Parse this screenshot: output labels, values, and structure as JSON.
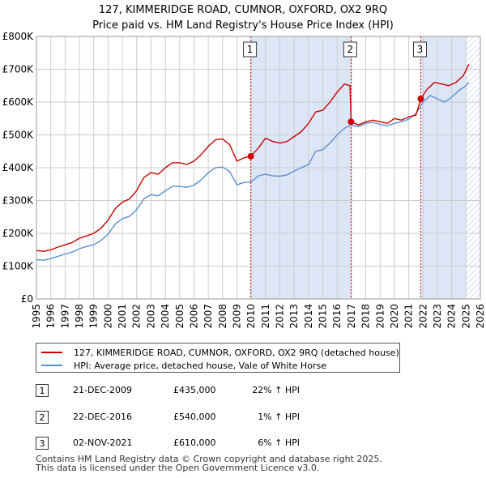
{
  "title": "127, KIMMERIDGE ROAD, CUMNOR, OXFORD, OX2 9RQ",
  "subtitle": "Price paid vs. HM Land Registry's House Price Index (HPI)",
  "colors": {
    "property": "#cc0000",
    "hpi": "#5b8fd0",
    "shade": "#dde6f6",
    "grid": "#cccccc",
    "marker_line": "#cc0000",
    "hatch": "#c8d4ea"
  },
  "chart_data": {
    "type": "line",
    "title": "127, KIMMERIDGE ROAD, CUMNOR, OXFORD, OX2 9RQ",
    "subtitle": "Price paid vs. HM Land Registry's House Price Index (HPI)",
    "xlabel": "",
    "ylabel": "",
    "xlim": [
      1995,
      2026
    ],
    "ylim": [
      0,
      800000
    ],
    "grid": true,
    "x_ticks": [
      1995,
      1996,
      1997,
      1998,
      1999,
      2000,
      2001,
      2002,
      2003,
      2004,
      2005,
      2006,
      2007,
      2008,
      2009,
      2010,
      2011,
      2012,
      2013,
      2014,
      2015,
      2016,
      2017,
      2018,
      2019,
      2020,
      2021,
      2022,
      2023,
      2024,
      2025,
      2026
    ],
    "x_tick_labels": [
      "1995",
      "1996",
      "1997",
      "1998",
      "1999",
      "2000",
      "2001",
      "2002",
      "2003",
      "2004",
      "2005",
      "2006",
      "2007",
      "2008",
      "2009",
      "2010",
      "2011",
      "2012",
      "2013",
      "2014",
      "2015",
      "2016",
      "2017",
      "2018",
      "2019",
      "2020",
      "2021",
      "2022",
      "2023",
      "2024",
      "2025",
      "2026"
    ],
    "y_ticks": [
      0,
      100000,
      200000,
      300000,
      400000,
      500000,
      600000,
      700000,
      800000
    ],
    "y_tick_labels": [
      "£0",
      "£100K",
      "£200K",
      "£300K",
      "£400K",
      "£500K",
      "£600K",
      "£700K",
      "£800K"
    ],
    "shaded_periods": [
      [
        2009.97,
        2016.97
      ],
      [
        2021.84,
        2025.0
      ]
    ],
    "hatched_from": 2025.0,
    "series": [
      {
        "name": "127, KIMMERIDGE ROAD, CUMNOR, OXFORD, OX2 9RQ (detached house)",
        "x": [
          1995.0,
          1995.5,
          1996.0,
          1996.5,
          1997.0,
          1997.5,
          1998.0,
          1998.5,
          1999.0,
          1999.5,
          2000.0,
          2000.5,
          2001.0,
          2001.5,
          2002.0,
          2002.5,
          2003.0,
          2003.5,
          2004.0,
          2004.5,
          2005.0,
          2005.5,
          2006.0,
          2006.5,
          2007.0,
          2007.5,
          2008.0,
          2008.5,
          2009.0,
          2009.5,
          2009.97,
          2010.5,
          2011.0,
          2011.5,
          2012.0,
          2012.5,
          2013.0,
          2013.5,
          2014.0,
          2014.5,
          2015.0,
          2015.5,
          2016.0,
          2016.5,
          2016.9,
          2016.97,
          2017.5,
          2018.0,
          2018.5,
          2019.0,
          2019.5,
          2020.0,
          2020.5,
          2021.0,
          2021.5,
          2021.84,
          2022.3,
          2022.8,
          2023.3,
          2023.8,
          2024.3,
          2024.8,
          2025.2
        ],
        "y": [
          148000,
          145000,
          150000,
          158000,
          165000,
          172000,
          185000,
          192000,
          200000,
          215000,
          240000,
          275000,
          295000,
          305000,
          330000,
          370000,
          385000,
          380000,
          400000,
          415000,
          415000,
          410000,
          420000,
          440000,
          465000,
          485000,
          488000,
          470000,
          420000,
          430000,
          435000,
          460000,
          490000,
          480000,
          475000,
          480000,
          495000,
          510000,
          535000,
          570000,
          575000,
          600000,
          630000,
          655000,
          650000,
          540000,
          530000,
          540000,
          545000,
          540000,
          535000,
          550000,
          545000,
          555000,
          560000,
          610000,
          640000,
          660000,
          655000,
          650000,
          660000,
          680000,
          715000
        ]
      },
      {
        "name": "HPI: Average price, detached house, Vale of White Horse",
        "x": [
          1995.0,
          1995.5,
          1996.0,
          1996.5,
          1997.0,
          1997.5,
          1998.0,
          1998.5,
          1999.0,
          1999.5,
          2000.0,
          2000.5,
          2001.0,
          2001.5,
          2002.0,
          2002.5,
          2003.0,
          2003.5,
          2004.0,
          2004.5,
          2005.0,
          2005.5,
          2006.0,
          2006.5,
          2007.0,
          2007.5,
          2008.0,
          2008.5,
          2009.0,
          2009.5,
          2010.0,
          2010.5,
          2011.0,
          2011.5,
          2012.0,
          2012.5,
          2013.0,
          2013.5,
          2014.0,
          2014.5,
          2015.0,
          2015.5,
          2016.0,
          2016.5,
          2017.0,
          2017.5,
          2018.0,
          2018.5,
          2019.0,
          2019.5,
          2020.0,
          2020.5,
          2021.0,
          2021.5,
          2022.0,
          2022.5,
          2023.0,
          2023.5,
          2024.0,
          2024.5,
          2025.0,
          2025.2
        ],
        "y": [
          120000,
          118000,
          123000,
          130000,
          137000,
          143000,
          153000,
          160000,
          165000,
          178000,
          197000,
          228000,
          245000,
          252000,
          272000,
          305000,
          318000,
          314000,
          330000,
          343000,
          343000,
          340000,
          347000,
          363000,
          385000,
          400000,
          402000,
          388000,
          348000,
          355000,
          357000,
          375000,
          380000,
          375000,
          374000,
          378000,
          390000,
          400000,
          410000,
          450000,
          455000,
          475000,
          500000,
          520000,
          530000,
          525000,
          535000,
          538000,
          532000,
          528000,
          535000,
          540000,
          548000,
          565000,
          600000,
          620000,
          610000,
          600000,
          615000,
          635000,
          650000,
          660000
        ]
      }
    ],
    "sale_markers": [
      {
        "label": "1",
        "x": 2009.97,
        "y": 435000
      },
      {
        "label": "2",
        "x": 2016.97,
        "y": 540000
      },
      {
        "label": "3",
        "x": 2021.84,
        "y": 610000
      }
    ]
  },
  "legend": {
    "property_label": "127, KIMMERIDGE ROAD, CUMNOR, OXFORD, OX2 9RQ (detached house)",
    "hpi_label": "HPI: Average price, detached house, Vale of White Horse"
  },
  "sales": [
    {
      "num": "1",
      "date": "21-DEC-2009",
      "price": "£435,000",
      "hpi": "22% ↑ HPI"
    },
    {
      "num": "2",
      "date": "22-DEC-2016",
      "price": "£540,000",
      "hpi": "1% ↑ HPI"
    },
    {
      "num": "3",
      "date": "02-NOV-2021",
      "price": "£610,000",
      "hpi": "6% ↑ HPI"
    }
  ],
  "footer": {
    "line1": "Contains HM Land Registry data © Crown copyright and database right 2025.",
    "line2": "This data is licensed under the Open Government Licence v3.0."
  }
}
